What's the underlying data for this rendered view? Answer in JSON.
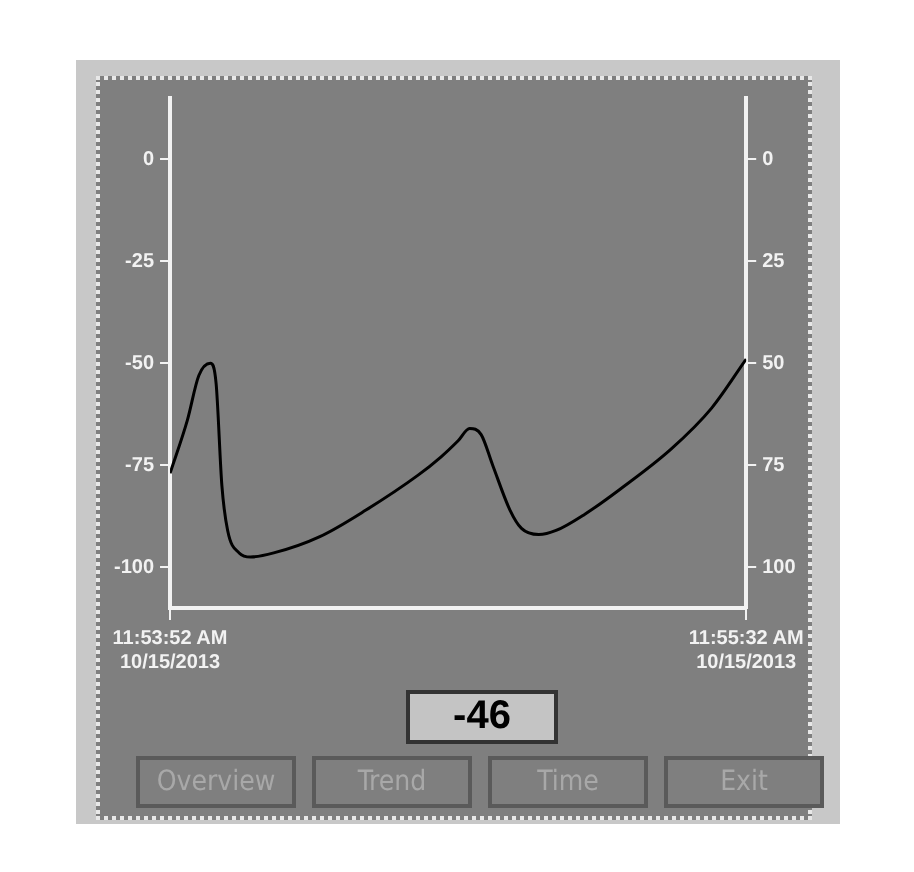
{
  "chart_data": {
    "type": "line",
    "x": [
      "2013-10-15T11:53:52",
      "2013-10-15T11:53:55",
      "2013-10-15T11:53:57",
      "2013-10-15T11:53:59",
      "2013-10-15T11:54:00",
      "2013-10-15T11:54:01",
      "2013-10-15T11:54:02",
      "2013-10-15T11:54:04",
      "2013-10-15T11:54:06",
      "2013-10-15T11:54:10",
      "2013-10-15T11:54:18",
      "2013-10-15T11:54:26",
      "2013-10-15T11:54:35",
      "2013-10-15T11:54:39",
      "2013-10-15T11:54:42",
      "2013-10-15T11:54:44",
      "2013-10-15T11:54:46",
      "2013-10-15T11:54:48",
      "2013-10-15T11:54:51",
      "2013-10-15T11:54:53",
      "2013-10-15T11:54:56",
      "2013-10-15T11:54:59",
      "2013-10-15T11:55:04",
      "2013-10-15T11:55:10",
      "2013-10-15T11:55:19",
      "2013-10-15T11:55:26",
      "2013-10-15T11:55:32"
    ],
    "values": [
      -77,
      -64,
      -53,
      -50,
      -55,
      -80,
      -91,
      -96.5,
      -97.5,
      -96.5,
      -92.5,
      -86,
      -77.5,
      -73,
      -69,
      -66,
      -67.5,
      -75,
      -86,
      -90.5,
      -92,
      -91,
      -87,
      -81,
      -71,
      -61,
      -49
    ],
    "color": "#000000",
    "xlim": [
      "2013-10-15T11:53:52",
      "2013-10-15T11:55:32"
    ],
    "xticks": [
      {
        "value": "2013-10-15T11:53:52",
        "label": "11:53:52 AM\n10/15/2013"
      },
      {
        "value": "2013-10-15T11:55:32",
        "label": "11:55:32 AM\n10/15/2013"
      }
    ],
    "ylim": [
      -110,
      15
    ],
    "yticks": [
      -100,
      -75,
      -50,
      -25,
      0
    ],
    "y2lim": [
      -110,
      15
    ],
    "y2ticks": [
      {
        "value": -100,
        "label": "100"
      },
      {
        "value": -75,
        "label": "75"
      },
      {
        "value": -50,
        "label": "50"
      },
      {
        "value": -25,
        "label": "25"
      },
      {
        "value": 0,
        "label": "0"
      }
    ],
    "annotations": [
      "-46",
      "Overview",
      "Trend",
      "Time",
      "Exit"
    ]
  }
}
